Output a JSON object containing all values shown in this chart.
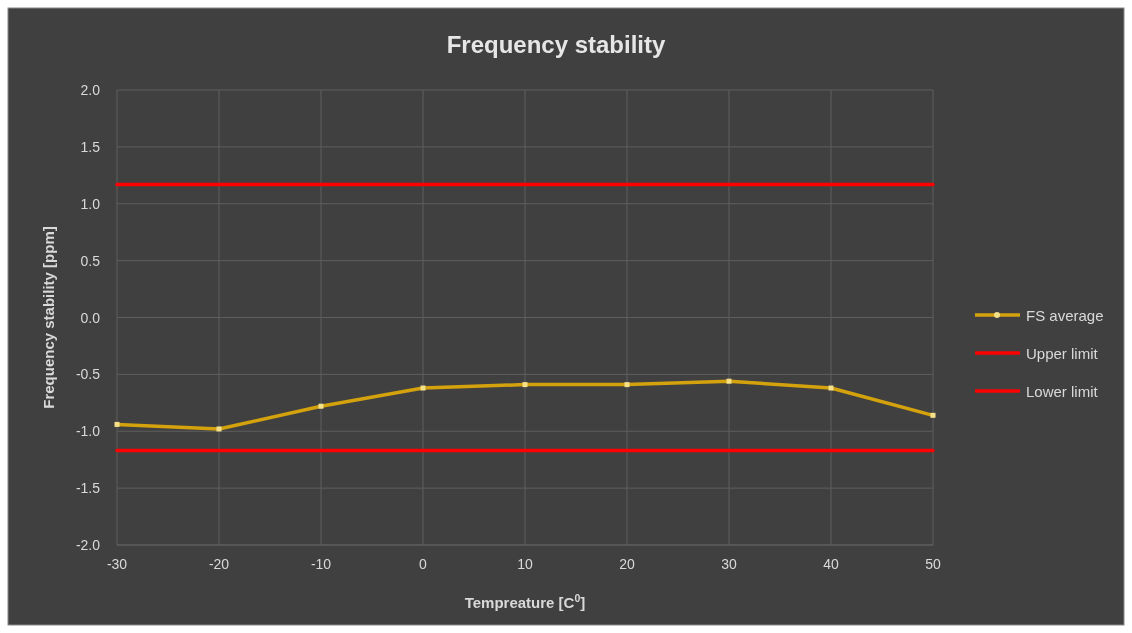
{
  "chart_data": {
    "type": "line",
    "title": "Frequency stability",
    "xlabel": "Tempreature [C$^{0}$]",
    "ylabel": "Frequency stability  [ppm]",
    "x": [
      -30,
      -20,
      -10,
      0,
      10,
      20,
      30,
      40,
      50
    ],
    "series": [
      {
        "name": "FS average",
        "color": "#d4a20c",
        "values": [
          -0.94,
          -0.98,
          -0.78,
          -0.62,
          -0.59,
          -0.59,
          -0.56,
          -0.62,
          -0.86
        ],
        "marker": "square"
      },
      {
        "name": "Upper limit",
        "color": "#ff0000",
        "values": [
          1.17,
          1.17,
          1.17,
          1.17,
          1.17,
          1.17,
          1.17,
          1.17,
          1.17
        ],
        "marker": "none"
      },
      {
        "name": "Lower limit",
        "color": "#ff0000",
        "values": [
          -1.17,
          -1.17,
          -1.17,
          -1.17,
          -1.17,
          -1.17,
          -1.17,
          -1.17,
          -1.17
        ],
        "marker": "none"
      }
    ],
    "xlim": [
      -30,
      50
    ],
    "xticks": [
      -30,
      -20,
      -10,
      0,
      10,
      20,
      30,
      40,
      50
    ],
    "ylim": [
      -2,
      2
    ],
    "yticks": [
      {
        "value": -2,
        "label": "-2.0"
      },
      {
        "value": -1.5,
        "label": "-1.5"
      },
      {
        "value": -1,
        "label": "-1.0"
      },
      {
        "value": -0.5,
        "label": "-0.5"
      },
      {
        "value": 0,
        "label": "0.0"
      },
      {
        "value": 0.5,
        "label": "0.5"
      },
      {
        "value": 1,
        "label": "1.0"
      },
      {
        "value": 1.5,
        "label": "1.5"
      },
      {
        "value": 2,
        "label": "2.0"
      }
    ],
    "grid": true,
    "legend": "right",
    "line_style": "solid"
  }
}
